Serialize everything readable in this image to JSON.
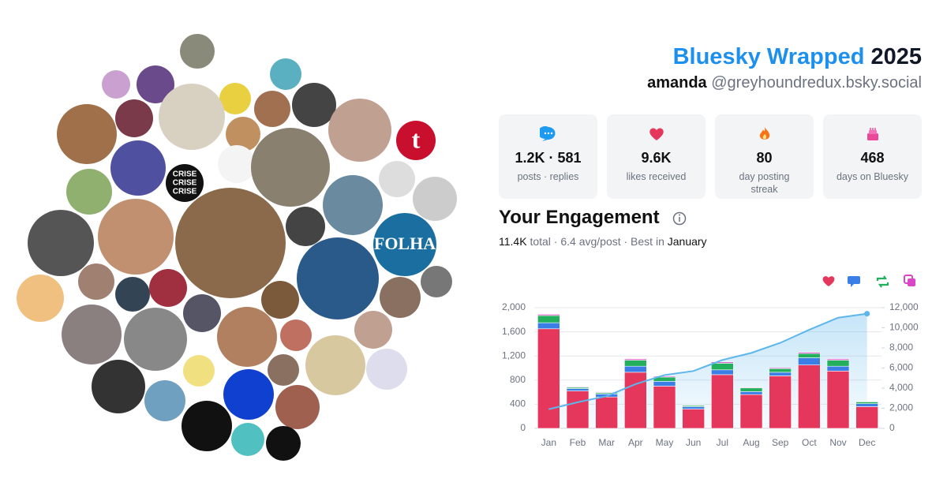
{
  "header": {
    "title": "Bluesky Wrapped",
    "year": "2025",
    "name": "amanda",
    "handle": "@greyhoundredux.bsky.social"
  },
  "stats": [
    {
      "value": "1.2K · 581",
      "label": "posts · replies"
    },
    {
      "value": "9.6K",
      "label": "likes received"
    },
    {
      "value": "80",
      "label": "day posting streak"
    },
    {
      "value": "468",
      "label": "days on Bluesky"
    }
  ],
  "avatar_texts": [
    "t",
    "FOLHA",
    "CRISE",
    "CRISE",
    "CRISE"
  ],
  "chart_data": {
    "type": "bar",
    "stacked": true,
    "title": "Your Engagement",
    "subtitle": {
      "total": "11.4K",
      "middle": "total · 6.4 avg/post · Best in",
      "best": "January"
    },
    "categories": [
      "Jan",
      "Feb",
      "Mar",
      "Apr",
      "May",
      "Jun",
      "Jul",
      "Aug",
      "Sep",
      "Oct",
      "Nov",
      "Dec"
    ],
    "series": [
      {
        "color": "#e5375c",
        "values": [
          1650,
          620,
          520,
          930,
          700,
          320,
          890,
          560,
          870,
          1050,
          950,
          360
        ]
      },
      {
        "color": "#3b7fe6",
        "values": [
          100,
          40,
          50,
          100,
          80,
          40,
          80,
          50,
          60,
          120,
          80,
          50
        ]
      },
      {
        "color": "#23b05c",
        "values": [
          120,
          20,
          20,
          100,
          70,
          20,
          110,
          60,
          60,
          70,
          100,
          30
        ]
      },
      {
        "color": "#d946c8",
        "values": [
          20,
          10,
          10,
          20,
          15,
          5,
          20,
          10,
          15,
          20,
          20,
          5
        ]
      },
      {
        "type": "area",
        "axis": "y2",
        "color": "#5cb6ec",
        "values": [
          1900,
          2600,
          3200,
          4400,
          5300,
          5700,
          6800,
          7500,
          8500,
          9800,
          11000,
          11400
        ]
      }
    ],
    "ylim": [
      0,
      2000
    ],
    "yticks": [
      0,
      400,
      800,
      {
        "value": 1200,
        "label": "1,200"
      },
      {
        "value": 1600,
        "label": "1,600"
      },
      {
        "value": 2000,
        "label": "2,000"
      }
    ],
    "y2lim": [
      0,
      12000
    ],
    "y2ticks": [
      0,
      {
        "value": 2000,
        "label": "2,000"
      },
      {
        "value": 4000,
        "label": "4,000"
      },
      {
        "value": 6000,
        "label": "6,000"
      },
      {
        "value": 8000,
        "label": "8,000"
      },
      {
        "value": 10000,
        "label": "10,000"
      },
      {
        "value": 12000,
        "label": "12,000"
      }
    ],
    "grid": true
  }
}
